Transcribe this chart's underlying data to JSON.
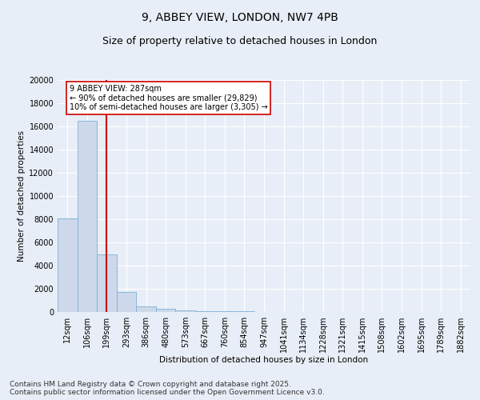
{
  "title1": "9, ABBEY VIEW, LONDON, NW7 4PB",
  "title2": "Size of property relative to detached houses in London",
  "xlabel": "Distribution of detached houses by size in London",
  "ylabel": "Number of detached properties",
  "categories": [
    "12sqm",
    "106sqm",
    "199sqm",
    "293sqm",
    "386sqm",
    "480sqm",
    "573sqm",
    "667sqm",
    "760sqm",
    "854sqm",
    "947sqm",
    "1041sqm",
    "1134sqm",
    "1228sqm",
    "1321sqm",
    "1415sqm",
    "1508sqm",
    "1602sqm",
    "1695sqm",
    "1789sqm",
    "1882sqm"
  ],
  "values": [
    8100,
    16500,
    5000,
    1750,
    450,
    280,
    160,
    100,
    60,
    50,
    0,
    0,
    0,
    0,
    0,
    0,
    0,
    0,
    0,
    0,
    0
  ],
  "bar_color": "#cdd9ea",
  "bar_edge_color": "#7bafd4",
  "vline_x_index": 2,
  "vline_color": "#cc0000",
  "annotation_text": "9 ABBEY VIEW: 287sqm\n← 90% of detached houses are smaller (29,829)\n10% of semi-detached houses are larger (3,305) →",
  "annotation_box_color": "#ffffff",
  "annotation_box_edge_color": "#cc0000",
  "ylim": [
    0,
    20000
  ],
  "yticks": [
    0,
    2000,
    4000,
    6000,
    8000,
    10000,
    12000,
    14000,
    16000,
    18000,
    20000
  ],
  "footer1": "Contains HM Land Registry data © Crown copyright and database right 2025.",
  "footer2": "Contains public sector information licensed under the Open Government Licence v3.0.",
  "background_color": "#e8eef7",
  "grid_color": "#ffffff",
  "title1_fontsize": 10,
  "title2_fontsize": 9,
  "axis_fontsize": 7.5,
  "tick_fontsize": 7,
  "footer_fontsize": 6.5
}
